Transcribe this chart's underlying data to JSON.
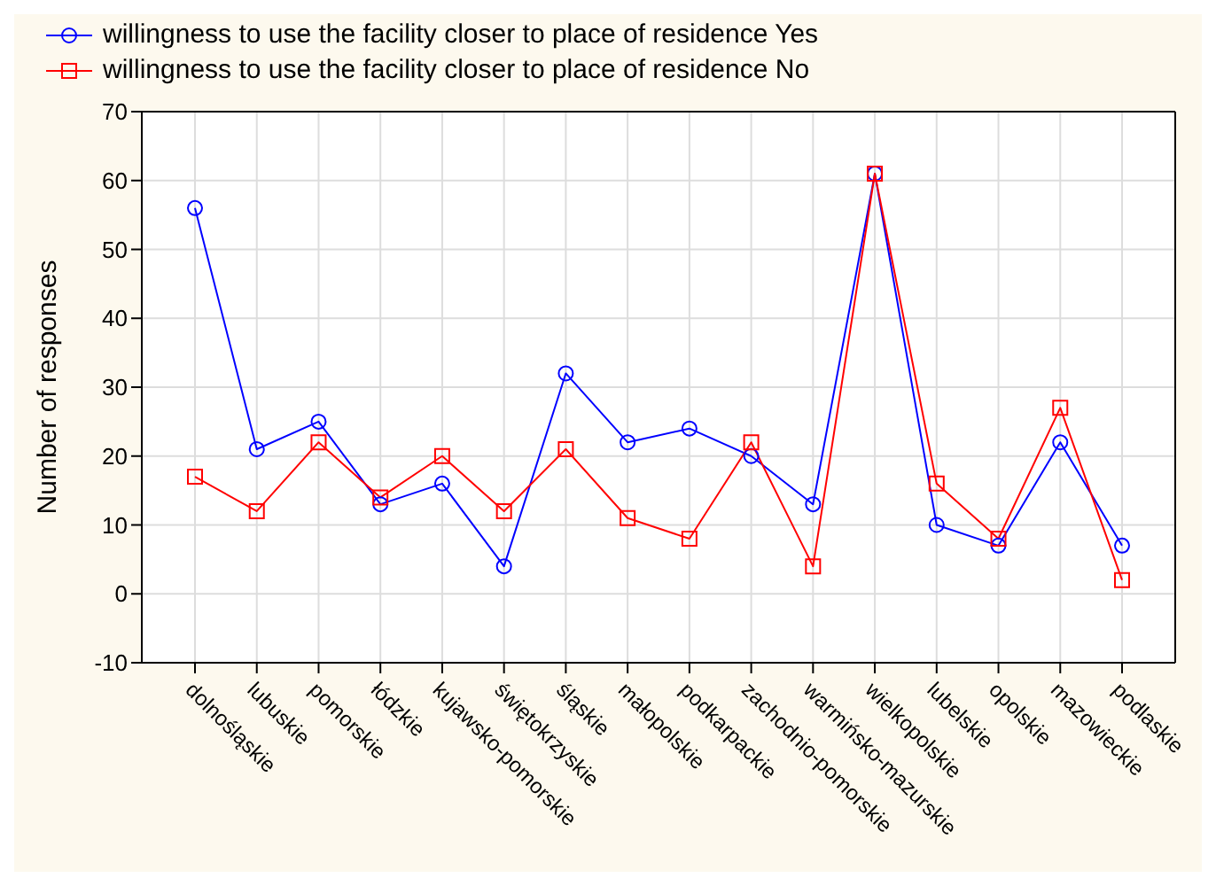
{
  "chart_data": {
    "type": "line",
    "ylabel": "Number of responses",
    "categories": [
      "dolnośląskie",
      "lubuskie",
      "pomorskie",
      "łódzkie",
      "kujawsko-pomorskie",
      "świętokrzyskie",
      "śląskie",
      "małopolskie",
      "podkarpackie",
      "zachodnio-pomorskie",
      "warmińsko-mazurskie",
      "wielkopolskie",
      "lubelskie",
      "opolskie",
      "mazowieckie",
      "podlaskie"
    ],
    "series": [
      {
        "name": "willingness to use the facility closer to place of residence Yes",
        "color": "#0000ff",
        "marker": "circle",
        "values": [
          56,
          21,
          25,
          13,
          16,
          4,
          32,
          22,
          24,
          20,
          13,
          61,
          10,
          7,
          22,
          7
        ]
      },
      {
        "name": "willingness to use the facility closer to place of residence No",
        "color": "#ff0000",
        "marker": "square",
        "values": [
          17,
          12,
          22,
          14,
          20,
          12,
          21,
          11,
          8,
          22,
          4,
          61,
          16,
          8,
          27,
          2
        ]
      }
    ],
    "ylim": [
      -10,
      70
    ],
    "yticks": [
      -10,
      0,
      10,
      20,
      30,
      40,
      50,
      60,
      70
    ],
    "grid": true,
    "legend": "top left",
    "line_style": "solid"
  }
}
